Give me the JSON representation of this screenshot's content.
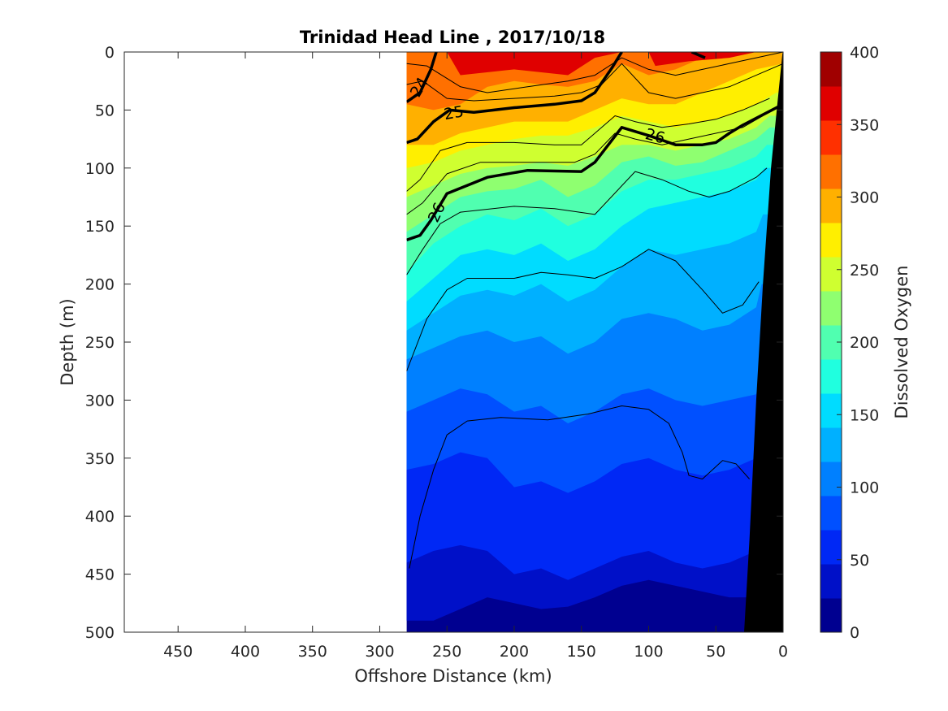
{
  "chart_data": {
    "type": "contour",
    "title": "Trinidad Head Line , 2017/10/18",
    "xlabel": "Offshore Distance (km)",
    "ylabel": "Depth (m)",
    "colorbar_label": "Dissolved Oxygen",
    "xlim": [
      490,
      0
    ],
    "ylim": [
      0,
      500
    ],
    "x_reversed": true,
    "y_reversed": true,
    "x_ticks": [
      450,
      400,
      350,
      300,
      250,
      200,
      150,
      100,
      50,
      0
    ],
    "y_ticks": [
      0,
      50,
      100,
      150,
      200,
      250,
      300,
      350,
      400,
      450,
      500
    ],
    "colorbar_range": [
      0,
      400
    ],
    "colorbar_ticks": [
      0,
      50,
      100,
      150,
      200,
      250,
      300,
      350,
      400
    ],
    "colormap_levels": [
      {
        "from": 0,
        "to": 25,
        "color": "#000090"
      },
      {
        "from": 25,
        "to": 50,
        "color": "#0010c8"
      },
      {
        "from": 50,
        "to": 75,
        "color": "#0028f5"
      },
      {
        "from": 75,
        "to": 100,
        "color": "#0050ff"
      },
      {
        "from": 100,
        "to": 125,
        "color": "#0080ff"
      },
      {
        "from": 125,
        "to": 150,
        "color": "#00b0ff"
      },
      {
        "from": 150,
        "to": 175,
        "color": "#00dcff"
      },
      {
        "from": 175,
        "to": 200,
        "color": "#20ffdf"
      },
      {
        "from": 200,
        "to": 225,
        "color": "#50ffb0"
      },
      {
        "from": 225,
        "to": 250,
        "color": "#8fff70"
      },
      {
        "from": 250,
        "to": 275,
        "color": "#cfff30"
      },
      {
        "from": 275,
        "to": 300,
        "color": "#ffef00"
      },
      {
        "from": 300,
        "to": 325,
        "color": "#ffb000"
      },
      {
        "from": 325,
        "to": 350,
        "color": "#ff7000"
      },
      {
        "from": 350,
        "to": 375,
        "color": "#ff3000"
      },
      {
        "from": 375,
        "to": 400,
        "color": "#e00000"
      },
      {
        "from": 400,
        "to": 425,
        "color": "#a00000"
      }
    ],
    "data_extent_km": [
      280,
      0
    ],
    "bathymetry_color": "#000000",
    "oxygen_isolines": [
      {
        "value": 325,
        "x": [
          280,
          260,
          240,
          220,
          200,
          180,
          160,
          140,
          120,
          100,
          80,
          60,
          40,
          20,
          0
        ],
        "depth": [
          45,
          50,
          45,
          30,
          25,
          28,
          30,
          25,
          10,
          20,
          15,
          5,
          0,
          0,
          0
        ]
      },
      {
        "value": 300,
        "x": [
          280,
          260,
          240,
          220,
          200,
          180,
          160,
          140,
          120,
          100,
          80,
          60,
          40,
          20,
          0
        ],
        "depth": [
          80,
          80,
          70,
          65,
          60,
          60,
          60,
          50,
          40,
          45,
          45,
          35,
          25,
          15,
          10
        ]
      },
      {
        "value": 275,
        "x": [
          280,
          260,
          240,
          220,
          200,
          180,
          160,
          140,
          120,
          100,
          80,
          60,
          40,
          20,
          5
        ],
        "depth": [
          100,
          95,
          85,
          80,
          75,
          72,
          72,
          65,
          55,
          60,
          65,
          60,
          55,
          45,
          35
        ]
      },
      {
        "value": 250,
        "x": [
          280,
          260,
          240,
          220,
          200,
          180,
          160,
          140,
          120,
          100,
          80,
          60,
          40,
          20,
          10
        ],
        "depth": [
          125,
          115,
          105,
          100,
          98,
          95,
          98,
          90,
          80,
          80,
          85,
          80,
          75,
          65,
          55
        ]
      },
      {
        "value": 225,
        "x": [
          280,
          260,
          240,
          220,
          200,
          180,
          160,
          140,
          120,
          100,
          80,
          60,
          40,
          20,
          10
        ],
        "depth": [
          155,
          140,
          125,
          120,
          118,
          110,
          125,
          115,
          95,
          90,
          98,
          95,
          85,
          75,
          65
        ]
      },
      {
        "value": 200,
        "x": [
          280,
          260,
          240,
          220,
          200,
          180,
          160,
          140,
          120,
          100,
          80,
          60,
          40,
          20,
          12
        ],
        "depth": [
          190,
          165,
          150,
          140,
          145,
          135,
          150,
          140,
          120,
          110,
          110,
          105,
          100,
          90,
          80
        ]
      },
      {
        "value": 175,
        "x": [
          280,
          260,
          240,
          220,
          200,
          180,
          160,
          140,
          120,
          100,
          80,
          60,
          40,
          20,
          14
        ],
        "depth": [
          215,
          195,
          175,
          170,
          175,
          165,
          180,
          170,
          150,
          135,
          130,
          125,
          120,
          110,
          100
        ]
      },
      {
        "value": 150,
        "x": [
          280,
          260,
          240,
          220,
          200,
          180,
          160,
          140,
          120,
          100,
          80,
          60,
          40,
          20,
          15
        ],
        "depth": [
          240,
          225,
          210,
          205,
          210,
          200,
          215,
          205,
          185,
          170,
          175,
          170,
          165,
          155,
          140
        ]
      },
      {
        "value": 125,
        "x": [
          280,
          260,
          240,
          220,
          200,
          180,
          160,
          140,
          120,
          100,
          80,
          60,
          40,
          20,
          16
        ],
        "depth": [
          265,
          255,
          245,
          240,
          250,
          245,
          260,
          250,
          230,
          225,
          230,
          240,
          235,
          220,
          200
        ]
      },
      {
        "value": 100,
        "x": [
          280,
          260,
          240,
          220,
          200,
          180,
          160,
          140,
          120,
          100,
          80,
          60,
          40,
          20,
          17
        ],
        "depth": [
          310,
          300,
          290,
          295,
          310,
          305,
          320,
          310,
          295,
          290,
          300,
          305,
          300,
          295,
          280
        ]
      },
      {
        "value": 75,
        "x": [
          280,
          260,
          240,
          220,
          200,
          180,
          160,
          140,
          120,
          100,
          80,
          60,
          40,
          20,
          18
        ],
        "depth": [
          360,
          355,
          345,
          350,
          375,
          370,
          380,
          370,
          355,
          350,
          360,
          365,
          360,
          350,
          340
        ]
      },
      {
        "value": 50,
        "x": [
          280,
          260,
          240,
          220,
          200,
          180,
          160,
          140,
          120,
          100,
          80,
          60,
          40,
          20,
          19
        ],
        "depth": [
          440,
          430,
          425,
          430,
          450,
          445,
          455,
          445,
          435,
          430,
          440,
          445,
          440,
          430,
          420
        ]
      },
      {
        "value": 25,
        "x": [
          260,
          240,
          220,
          200,
          180,
          160,
          140,
          120,
          100,
          80,
          60,
          40,
          22
        ],
        "depth": [
          490,
          480,
          470,
          475,
          480,
          478,
          470,
          460,
          455,
          460,
          465,
          470,
          470
        ]
      }
    ],
    "density_contours": [
      {
        "label": "24",
        "bold": true,
        "x": [
          280,
          270,
          262,
          258
        ],
        "depth": [
          43,
          35,
          15,
          0
        ]
      },
      {
        "label": "25",
        "bold": true,
        "x": [
          280,
          272,
          260,
          248,
          230,
          200,
          170,
          150,
          140,
          128,
          120
        ],
        "depth": [
          78,
          75,
          60,
          50,
          52,
          48,
          45,
          42,
          35,
          15,
          0
        ]
      },
      {
        "label": "26",
        "bold": true,
        "x": [
          280,
          270,
          262,
          250,
          220,
          190,
          150,
          140,
          120,
          100,
          80,
          60,
          50,
          40,
          30,
          20,
          0
        ],
        "depth": [
          162,
          158,
          145,
          122,
          108,
          102,
          103,
          95,
          65,
          72,
          80,
          80,
          78,
          70,
          63,
          57,
          45
        ]
      },
      {
        "label": "",
        "bold": true,
        "x": [
          68,
          58
        ],
        "depth": [
          0,
          5
        ]
      },
      {
        "label": "",
        "bold": false,
        "x": [
          280,
          265,
          240,
          220,
          190,
          160,
          140,
          120,
          100,
          80,
          60,
          40,
          20,
          0
        ],
        "depth": [
          10,
          12,
          30,
          35,
          30,
          25,
          20,
          5,
          15,
          20,
          15,
          10,
          5,
          0
        ]
      },
      {
        "label": "",
        "bold": false,
        "x": [
          280,
          268,
          250,
          230,
          200,
          170,
          150,
          135,
          120,
          100,
          80,
          60,
          40,
          20,
          0
        ],
        "depth": [
          28,
          25,
          40,
          42,
          40,
          38,
          35,
          28,
          10,
          35,
          40,
          35,
          30,
          20,
          10
        ]
      },
      {
        "label": "",
        "bold": false,
        "x": [
          280,
          270,
          255,
          235,
          200,
          170,
          150,
          140,
          125,
          110,
          90,
          70,
          50,
          30,
          10
        ],
        "depth": [
          120,
          110,
          85,
          78,
          78,
          80,
          80,
          70,
          55,
          60,
          65,
          62,
          58,
          50,
          40
        ]
      },
      {
        "label": "",
        "bold": false,
        "x": [
          280,
          268,
          250,
          225,
          200,
          180,
          155,
          140,
          125,
          110,
          90,
          70,
          50,
          30,
          15
        ],
        "depth": [
          140,
          130,
          105,
          95,
          95,
          95,
          95,
          88,
          70,
          75,
          80,
          75,
          70,
          65,
          55
        ]
      },
      {
        "label": "",
        "bold": false,
        "x": [
          280,
          268,
          255,
          240,
          200,
          170,
          140,
          110,
          90,
          70,
          55,
          40,
          20,
          12
        ],
        "depth": [
          192,
          170,
          148,
          138,
          133,
          135,
          140,
          103,
          110,
          120,
          125,
          120,
          108,
          100
        ]
      },
      {
        "label": "",
        "bold": false,
        "x": [
          280,
          265,
          250,
          235,
          200,
          180,
          160,
          140,
          120,
          100,
          80,
          60,
          45,
          30,
          18
        ],
        "depth": [
          275,
          230,
          205,
          195,
          195,
          190,
          192,
          195,
          185,
          170,
          180,
          205,
          225,
          218,
          198
        ]
      },
      {
        "label": "",
        "bold": false,
        "x": [
          278,
          270,
          260,
          250,
          235,
          210,
          175,
          145,
          120,
          100,
          85,
          75,
          70,
          60,
          45,
          35,
          25
        ],
        "depth": [
          445,
          400,
          360,
          330,
          318,
          315,
          317,
          312,
          305,
          308,
          320,
          345,
          365,
          368,
          352,
          355,
          368
        ]
      }
    ]
  }
}
